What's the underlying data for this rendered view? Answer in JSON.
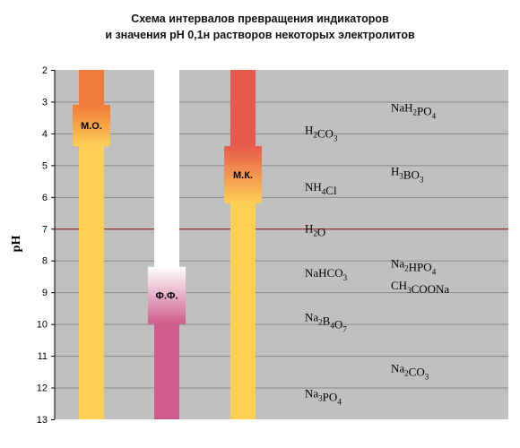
{
  "title_line1": "Схема интервалов превращения индикаторов",
  "title_line2": "и значения рН  0,1н растворов некоторых электролитов",
  "chart_data": {
    "type": "diagram",
    "ylabel": "pH",
    "ylim": [
      2,
      13
    ],
    "ticks": [
      2,
      3,
      4,
      5,
      6,
      7,
      8,
      9,
      10,
      11,
      12,
      13
    ],
    "grid": true,
    "neutral_line": 7,
    "indicators": [
      {
        "label": "М.О.",
        "transition": [
          3.1,
          4.4
        ],
        "acid_color": "#f07a38",
        "base_color": "#fdd054"
      },
      {
        "label": "Ф.Ф.",
        "transition": [
          8.2,
          10.0
        ],
        "acid_color": "#ffffff",
        "base_color": "#cf5c8a"
      },
      {
        "label": "М.К.",
        "transition": [
          4.4,
          6.2
        ],
        "acid_color": "#e85a4c",
        "base_color": "#fdd054"
      }
    ],
    "solutions": [
      {
        "parts": [
          "H",
          "2",
          "CO",
          "3"
        ],
        "ph": 3.9,
        "column": "left"
      },
      {
        "parts": [
          "NH",
          "4",
          "Cl"
        ],
        "ph": 5.7,
        "column": "left"
      },
      {
        "parts": [
          "H",
          "2",
          "O"
        ],
        "ph": 7.0,
        "column": "left"
      },
      {
        "parts": [
          "NaHCO",
          "3"
        ],
        "ph": 8.4,
        "column": "left"
      },
      {
        "parts": [
          "Na",
          "2",
          "B",
          "4",
          "O",
          "7"
        ],
        "ph": 9.8,
        "column": "left"
      },
      {
        "parts": [
          "Na",
          "3",
          "PO",
          "4"
        ],
        "ph": 12.2,
        "column": "left"
      },
      {
        "parts": [
          "NaH",
          "2",
          "PO",
          "4"
        ],
        "ph": 3.2,
        "column": "right"
      },
      {
        "parts": [
          "H",
          "3",
          "BO",
          "3"
        ],
        "ph": 5.2,
        "column": "right"
      },
      {
        "parts": [
          "Na",
          "2",
          "HPO",
          "4"
        ],
        "ph": 8.1,
        "column": "right"
      },
      {
        "parts": [
          "CH",
          "3",
          "COONa"
        ],
        "ph": 8.8,
        "column": "right"
      },
      {
        "parts": [
          "Na",
          "2",
          "CO",
          "3"
        ],
        "ph": 11.4,
        "column": "right"
      }
    ]
  }
}
